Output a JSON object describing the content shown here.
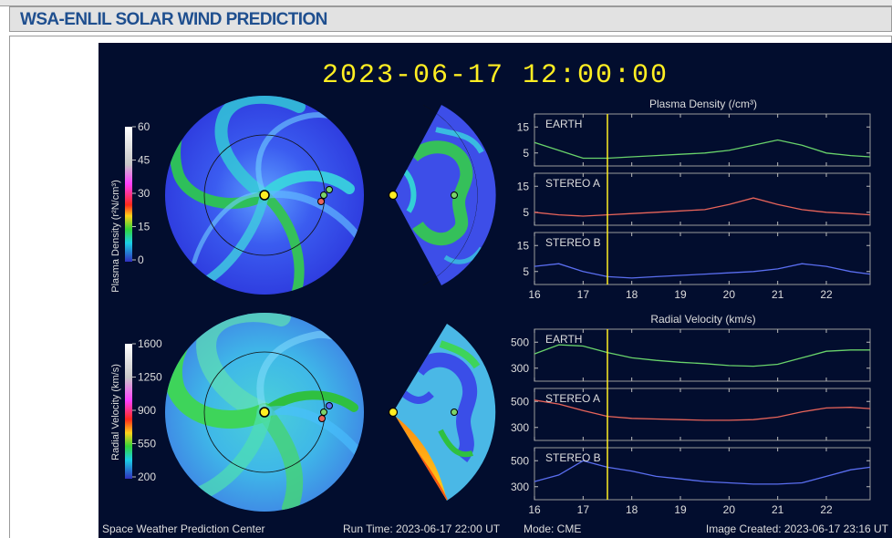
{
  "page": {
    "header_title": "WSA-ENLIL SOLAR WIND PREDICTION"
  },
  "prediction": {
    "timestamp": "2023-06-17 12:00:00",
    "density": {
      "colorbar_label": "Plasma Density (r²N/cm³)",
      "colorbar_ticks": [
        "60",
        "45",
        "30",
        "15",
        "0"
      ],
      "chart_title": "Plasma Density (/cm³)",
      "series": [
        {
          "name": "EARTH",
          "color": "#69d36b",
          "ticks": [
            "15",
            "5"
          ]
        },
        {
          "name": "STEREO A",
          "color": "#e8645a",
          "ticks": [
            "15",
            "5"
          ]
        },
        {
          "name": "STEREO B",
          "color": "#5a6ef0",
          "ticks": [
            "15",
            "5"
          ]
        }
      ],
      "x_ticks": [
        "16",
        "17",
        "18",
        "19",
        "20",
        "21",
        "22"
      ]
    },
    "velocity": {
      "colorbar_label": "Radial Velocity (km/s)",
      "colorbar_ticks": [
        "1600",
        "1250",
        "900",
        "550",
        "200"
      ],
      "chart_title": "Radial Velocity (km/s)",
      "series": [
        {
          "name": "EARTH",
          "color": "#69d36b",
          "ticks": [
            "500",
            "300"
          ]
        },
        {
          "name": "STEREO A",
          "color": "#e8645a",
          "ticks": [
            "500",
            "300"
          ]
        },
        {
          "name": "STEREO B",
          "color": "#5a6ef0",
          "ticks": [
            "500",
            "300"
          ]
        }
      ],
      "x_ticks": [
        "16",
        "17",
        "18",
        "19",
        "20",
        "21",
        "22"
      ]
    },
    "footer": {
      "center": "Space Weather Prediction Center",
      "run_time": "Run Time: 2023-06-17 22:00 UT",
      "mode": "Mode: CME",
      "created": "Image Created: 2023-06-17 23:16 UT"
    }
  },
  "chart_data": [
    {
      "type": "line",
      "title": "Plasma Density (/cm³)",
      "ylabel": "",
      "x": [
        16.0,
        16.5,
        17.0,
        17.5,
        18.0,
        18.5,
        19.0,
        19.5,
        20.0,
        20.5,
        21.0,
        21.5,
        22.0,
        22.5,
        22.9
      ],
      "series": [
        {
          "name": "EARTH",
          "values": [
            9,
            6,
            3,
            3,
            3.5,
            4,
            4.5,
            5,
            6,
            8,
            10,
            8,
            5,
            4,
            3.5
          ]
        },
        {
          "name": "STEREO A",
          "values": [
            5,
            4,
            3.5,
            4,
            4.5,
            5,
            5.5,
            6,
            8,
            10.5,
            8,
            6,
            5,
            4.5,
            4
          ]
        },
        {
          "name": "STEREO B",
          "values": [
            7,
            8,
            5,
            3,
            2.5,
            3,
            3.5,
            4,
            4.5,
            5,
            6,
            8,
            7,
            5,
            4
          ]
        }
      ],
      "xlim": [
        16,
        22.9
      ],
      "ylim": [
        0,
        20
      ]
    },
    {
      "type": "line",
      "title": "Radial Velocity (km/s)",
      "ylabel": "",
      "x": [
        16.0,
        16.5,
        17.0,
        17.5,
        18.0,
        18.5,
        19.0,
        19.5,
        20.0,
        20.5,
        21.0,
        21.5,
        22.0,
        22.5,
        22.9
      ],
      "series": [
        {
          "name": "EARTH",
          "values": [
            410,
            480,
            470,
            420,
            380,
            360,
            345,
            335,
            320,
            315,
            330,
            380,
            430,
            440,
            440
          ]
        },
        {
          "name": "STEREO A",
          "values": [
            510,
            480,
            430,
            385,
            370,
            365,
            360,
            355,
            355,
            360,
            380,
            420,
            450,
            455,
            445
          ]
        },
        {
          "name": "STEREO B",
          "values": [
            340,
            390,
            500,
            450,
            420,
            380,
            360,
            340,
            330,
            320,
            320,
            330,
            380,
            430,
            450
          ]
        }
      ],
      "xlim": [
        16,
        22.9
      ],
      "ylim": [
        200,
        600
      ]
    }
  ]
}
